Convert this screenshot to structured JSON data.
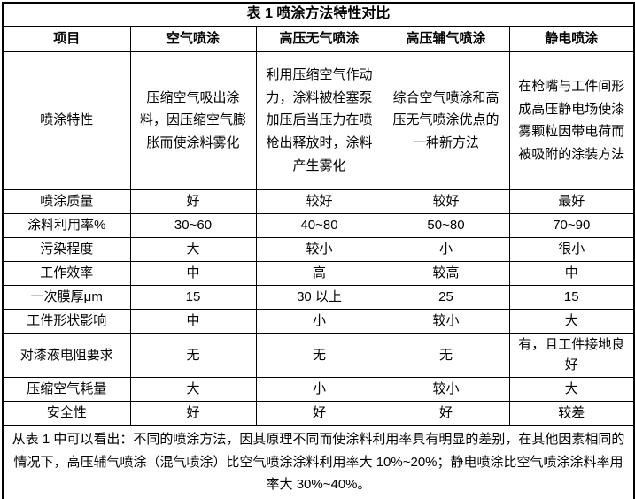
{
  "table": {
    "title": "表 1  喷涂方法特性对比",
    "columns": [
      "项目",
      "空气喷涂",
      "高压无气喷涂",
      "高压辅气喷涂",
      "静电喷涂"
    ],
    "rows": [
      {
        "label": "喷涂特性",
        "values": [
          "压缩空气吸出涂料，因压缩空气膨胀而使涂料雾化",
          "利用压缩空气作动力，涂料被栓塞泵加压后当压力在喷枪出释放时，涂料产生雾化",
          "综合空气喷涂和高压无气喷涂优点的一种新方法",
          "在枪嘴与工件间形成高压静电场使漆雾颗粒因带电荷而被吸附的涂装方法"
        ]
      },
      {
        "label": "喷涂质量",
        "values": [
          "好",
          "较好",
          "较好",
          "最好"
        ]
      },
      {
        "label": "涂料利用率%",
        "values": [
          "30~60",
          "40~80",
          "50~80",
          "70~90"
        ]
      },
      {
        "label": "污染程度",
        "values": [
          "大",
          "较小",
          "小",
          "很小"
        ]
      },
      {
        "label": "工作效率",
        "values": [
          "中",
          "高",
          "较高",
          "中"
        ]
      },
      {
        "label": "一次膜厚μm",
        "values": [
          "15",
          "30 以上",
          "25",
          "15"
        ]
      },
      {
        "label": "工件形状影响",
        "values": [
          "中",
          "小",
          "较小",
          "大"
        ]
      },
      {
        "label": "对漆液电阻要求",
        "values": [
          "无",
          "无",
          "无",
          "有，且工件接地良好"
        ]
      },
      {
        "label": "压缩空气耗量",
        "values": [
          "大",
          "小",
          "较小",
          "大"
        ]
      },
      {
        "label": "安全性",
        "values": [
          "好",
          "好",
          "好",
          "较差"
        ]
      }
    ],
    "footer_note": "从表 1 中可以看出：不同的喷涂方法，因其原理不同而使涂料利用率具有明显的差别，在其他因素相同的情况下，高压辅气喷涂（混气喷涂）比空气喷涂涂料利用率大 10%~20%；静电喷涂比空气喷涂涂料率用率大 30%~40%。",
    "border_color": "#000000",
    "background_color": "#ffffff",
    "text_color": "#000000"
  }
}
